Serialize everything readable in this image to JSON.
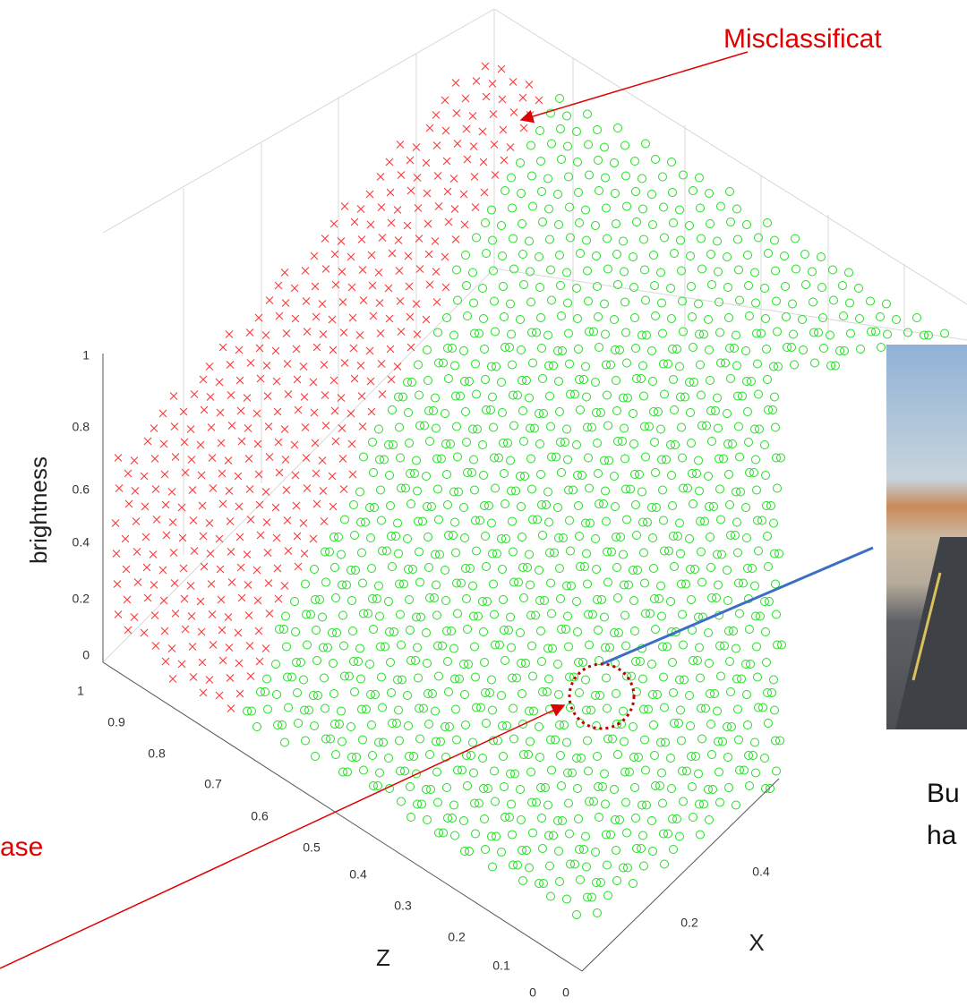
{
  "annotations": {
    "top": "Misclassificat",
    "left": "ase",
    "right_line1": "Bu",
    "right_line2": "ha"
  },
  "plot": {
    "vertical_axis_label": "brightness",
    "z_axis_label": "Z",
    "x_axis_label": "X",
    "vertical_ticks": [
      "1",
      "0.8",
      "0.6",
      "0.4",
      "0.2",
      "0"
    ],
    "z_ticks": [
      "1",
      "0.9",
      "0.8",
      "0.7",
      "0.6",
      "0.5",
      "0.4",
      "0.3",
      "0.2",
      "0.1",
      "0"
    ],
    "x_ticks": [
      "0",
      "0.2",
      "0.4"
    ]
  }
}
